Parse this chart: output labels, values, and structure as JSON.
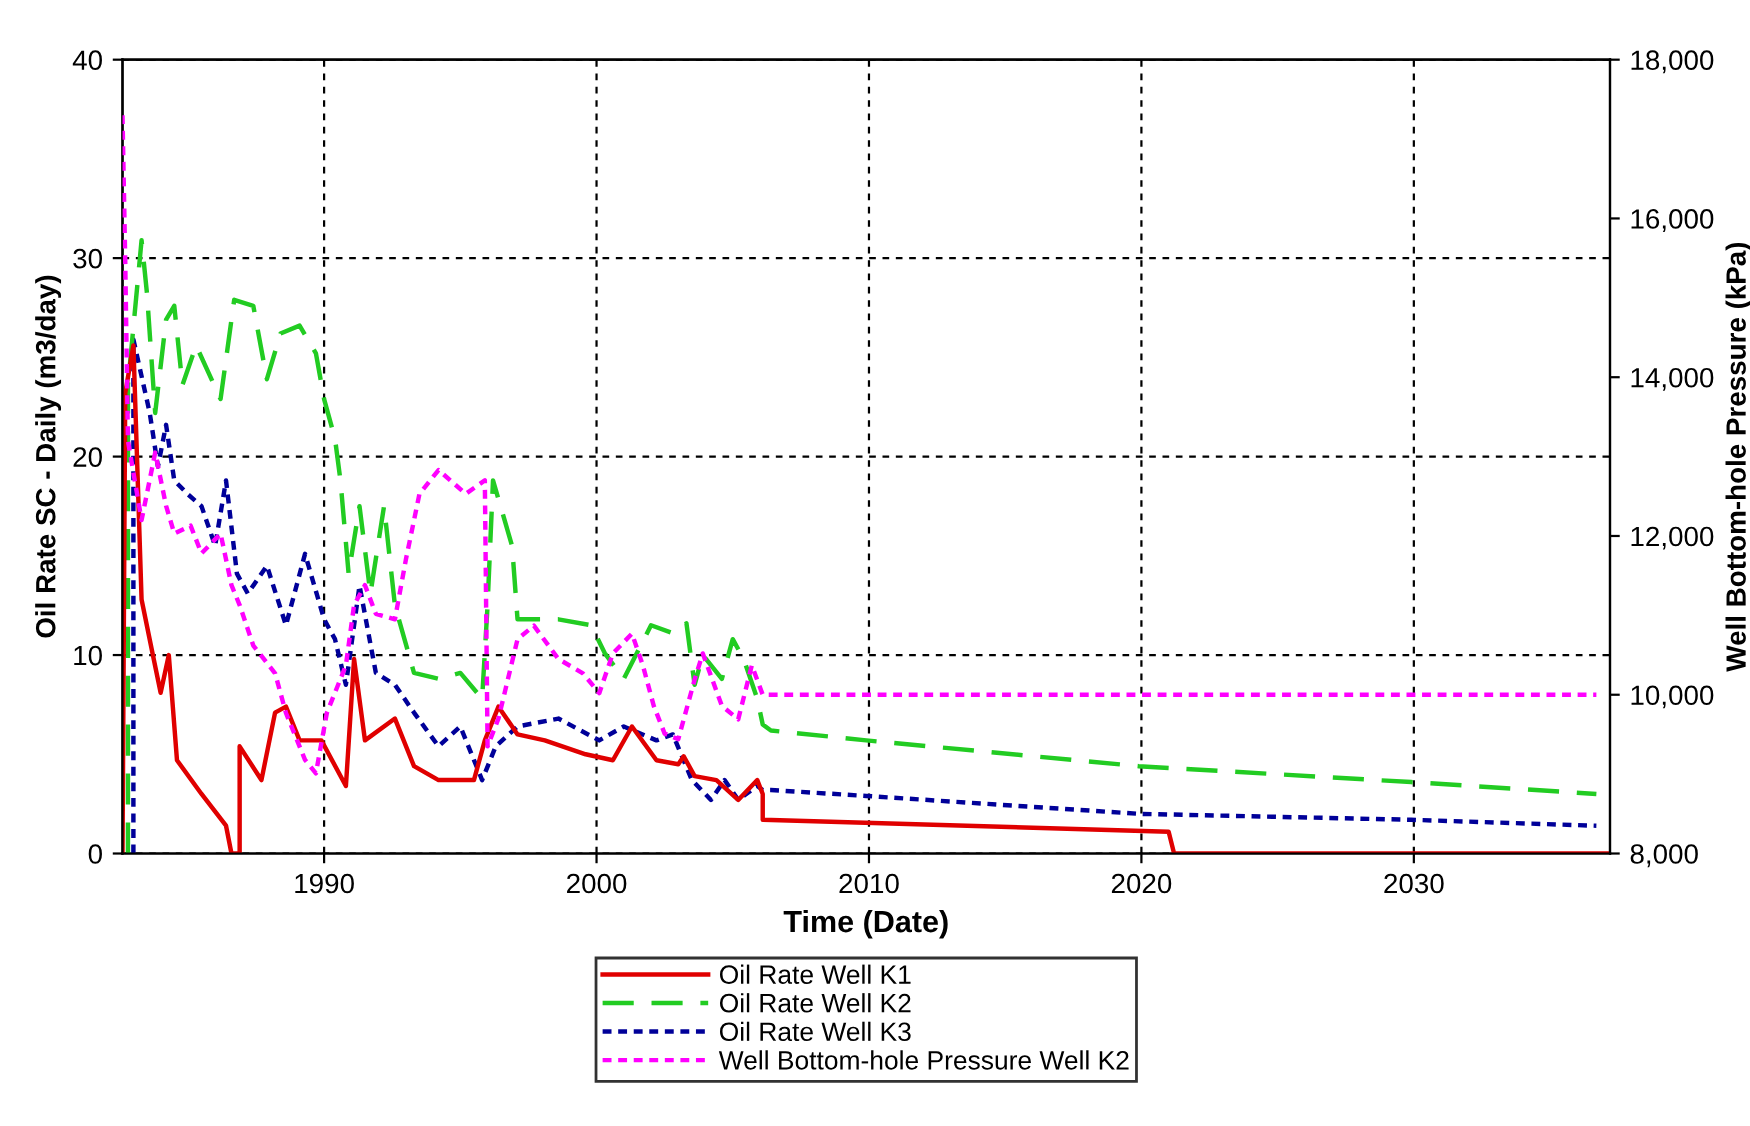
{
  "chart_data": {
    "type": "line",
    "xlabel": "Time (Date)",
    "ylabel": "Oil Rate SC - Daily (m3/day)",
    "y2label": "Well Bottom-hole Pressure (kPa)",
    "xlim": [
      1982.6,
      2037.2
    ],
    "xticks": [
      1990,
      2000,
      2010,
      2020,
      2030
    ],
    "ylim": [
      0,
      40
    ],
    "yticks": [
      0,
      10,
      20,
      30,
      40
    ],
    "y2lim": [
      8000,
      18000
    ],
    "y2ticks": [
      {
        "value": 8000,
        "label": "8,000"
      },
      {
        "value": 10000,
        "label": "10,000"
      },
      {
        "value": 12000,
        "label": "12,000"
      },
      {
        "value": 14000,
        "label": "14,000"
      },
      {
        "value": 16000,
        "label": "16,000"
      },
      {
        "value": 18000,
        "label": "18,000"
      }
    ],
    "grid": true,
    "legend": "bottom",
    "series": [
      {
        "name": "Oil Rate Well K1",
        "color": "#e00000",
        "line_style": "solid",
        "x": [
          1982.6,
          1982.7,
          1983.0,
          1983.3,
          1983.7,
          1984.0,
          1984.3,
          1984.6,
          1985.5,
          1986.4,
          1986.6,
          1986.9,
          1986.9,
          1987.7,
          1988.2,
          1988.6,
          1989.1,
          1989.9,
          1990.8,
          1991.1,
          1991.5,
          1992.6,
          1993.3,
          1994.2,
          1995.5,
          1995.9,
          1996.4,
          1997.1,
          1998.1,
          1999.6,
          2000.6,
          2001.3,
          2002.2,
          2003.0,
          2003.2,
          2003.6,
          2004.4,
          2005.2,
          2005.9,
          2006.1,
          2006.1,
          2021.0,
          2021.2,
          2037.2
        ],
        "values": [
          0,
          23.2,
          25.6,
          12.8,
          10.1,
          8.1,
          10.0,
          4.7,
          3.0,
          1.4,
          0,
          0,
          5.4,
          3.7,
          7.1,
          7.4,
          5.7,
          5.7,
          3.4,
          9.8,
          5.7,
          6.8,
          4.4,
          3.7,
          3.7,
          5.7,
          7.4,
          6.0,
          5.7,
          5.0,
          4.7,
          6.4,
          4.7,
          4.5,
          4.9,
          3.9,
          3.7,
          2.7,
          3.7,
          3.0,
          1.7,
          1.1,
          0,
          0
        ]
      },
      {
        "name": "Oil Rate Well K2",
        "color": "#22cc22",
        "line_style": "dashed",
        "x": [
          1982.8,
          1982.8,
          1983.3,
          1983.5,
          1983.8,
          1984.2,
          1984.5,
          1984.8,
          1985.3,
          1986.2,
          1986.7,
          1987.4,
          1987.9,
          1988.4,
          1989.1,
          1989.7,
          1990.0,
          1990.4,
          1990.6,
          1990.9,
          1991.3,
          1991.7,
          1992.2,
          1992.6,
          1993.3,
          1994.2,
          1995.0,
          1995.8,
          1996.0,
          1996.2,
          1996.9,
          1997.1,
          1998.6,
          1999.8,
          2000.3,
          2001.0,
          2002.0,
          2002.8,
          2003.3,
          2003.6,
          2003.9,
          2004.6,
          2005.0,
          2005.4,
          2005.9,
          2006.1,
          2006.4,
          2009.9,
          2019.9,
          2029.9,
          2036.7
        ],
        "values": [
          0,
          23.6,
          30.9,
          28.2,
          22.2,
          26.9,
          27.6,
          23.6,
          25.6,
          22.9,
          27.9,
          27.6,
          23.9,
          26.2,
          26.6,
          25.2,
          22.9,
          20.9,
          18.8,
          14.1,
          17.5,
          13.1,
          17.5,
          12.5,
          9.1,
          8.8,
          9.1,
          7.8,
          12.5,
          18.8,
          15.5,
          11.8,
          11.8,
          11.5,
          10.1,
          8.8,
          11.5,
          11.1,
          11.6,
          8.5,
          10.0,
          8.8,
          10.8,
          9.8,
          7.8,
          6.5,
          6.2,
          5.7,
          4.4,
          3.6,
          3.0
        ]
      },
      {
        "name": "Oil Rate Well K3",
        "color": "#000099",
        "line_style": "dotted",
        "x": [
          1983.0,
          1983.0,
          1983.6,
          1983.9,
          1984.2,
          1984.5,
          1985.0,
          1985.5,
          1986.0,
          1986.4,
          1986.8,
          1987.2,
          1987.9,
          1988.6,
          1989.3,
          1990.0,
          1990.4,
          1990.8,
          1991.3,
          1991.9,
          1992.6,
          1993.3,
          1994.2,
          1995.0,
          1995.8,
          1996.3,
          1997.1,
          1998.6,
          2000.1,
          2001.0,
          2002.2,
          2002.8,
          2003.5,
          2004.2,
          2004.7,
          2005.2,
          2005.9,
          2006.1,
          2006.4,
          2009.9,
          2019.9,
          2029.9,
          2036.7
        ],
        "values": [
          0,
          25.9,
          22.2,
          19.5,
          21.6,
          18.8,
          18.1,
          17.5,
          15.5,
          18.8,
          14.1,
          13.1,
          14.5,
          11.5,
          15.1,
          11.8,
          10.8,
          8.5,
          13.5,
          9.1,
          8.5,
          7.1,
          5.4,
          6.4,
          3.7,
          5.4,
          6.4,
          6.8,
          5.7,
          6.4,
          5.7,
          6.0,
          3.7,
          2.7,
          3.7,
          2.7,
          3.4,
          3.2,
          3.2,
          2.9,
          2.0,
          1.7,
          1.4
        ]
      },
      {
        "name": "Well Bottom-hole Pressure Well K2",
        "color": "#ff00ff",
        "line_style": "dotted",
        "axis": "y2",
        "x": [
          1982.6,
          1982.7,
          1982.8,
          1983.3,
          1983.8,
          1984.2,
          1984.5,
          1985.1,
          1985.5,
          1986.2,
          1986.6,
          1986.9,
          1987.4,
          1988.2,
          1988.6,
          1989.3,
          1989.7,
          1990.1,
          1990.8,
          1991.1,
          1991.5,
          1991.9,
          1992.6,
          1993.0,
          1993.5,
          1994.2,
          1995.2,
          1995.9,
          1996.0,
          1996.4,
          1997.1,
          1997.7,
          1998.6,
          1999.5,
          2000.1,
          2000.6,
          2001.3,
          2001.7,
          2002.1,
          2002.5,
          2003.0,
          2003.6,
          2003.9,
          2004.6,
          2005.2,
          2005.7,
          2006.1,
          2036.7
        ],
        "values": [
          17300,
          15480,
          13200,
          12200,
          13050,
          12380,
          12030,
          12130,
          11780,
          12030,
          11380,
          11130,
          10620,
          10270,
          9770,
          9180,
          9010,
          9770,
          10370,
          11130,
          11380,
          11020,
          10950,
          11700,
          12530,
          12830,
          12530,
          12700,
          9350,
          9700,
          10700,
          10870,
          10450,
          10270,
          10020,
          10520,
          10770,
          10370,
          9860,
          9510,
          9440,
          10190,
          10520,
          9860,
          9690,
          10370,
          10000,
          10000
        ]
      }
    ]
  }
}
